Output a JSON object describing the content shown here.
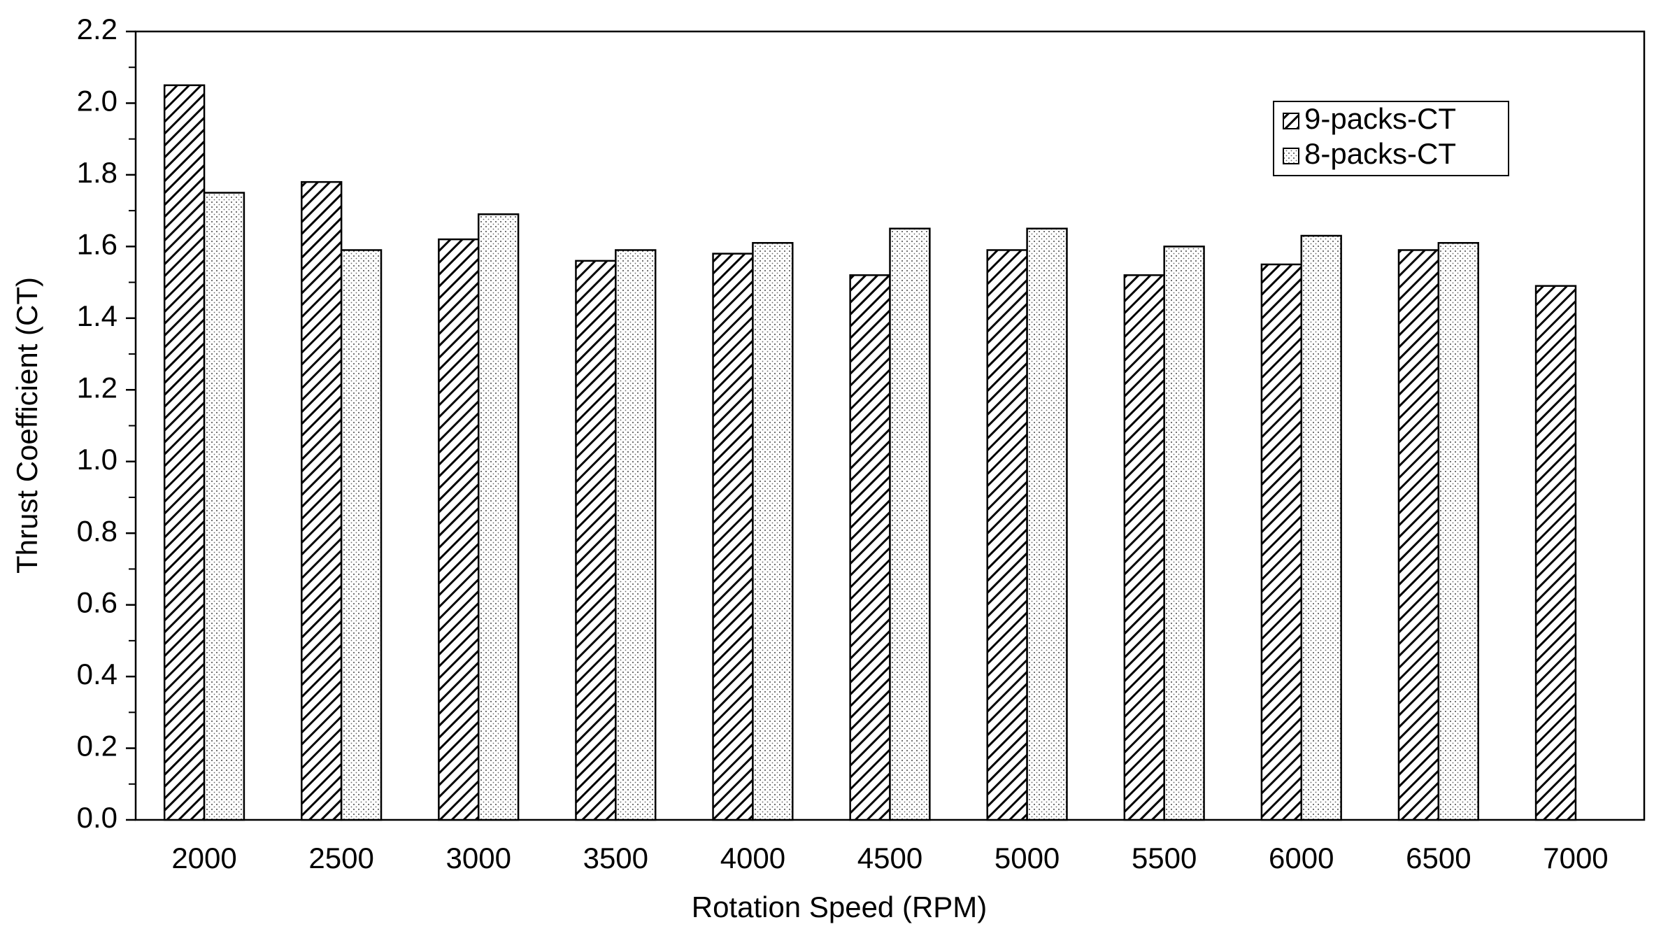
{
  "chart_data": {
    "type": "bar",
    "x_label": "Rotation Speed (RPM)",
    "y_label": "Thrust Coefficient (CT)",
    "categories": [
      "2000",
      "2500",
      "3000",
      "3500",
      "4000",
      "4500",
      "5000",
      "5500",
      "6000",
      "6500",
      "7000"
    ],
    "series": [
      {
        "name": "9-packs-CT",
        "color": "#000000",
        "pattern": "hatch",
        "values": [
          2.05,
          1.78,
          1.62,
          1.56,
          1.58,
          1.52,
          1.59,
          1.52,
          1.55,
          1.59,
          1.49
        ]
      },
      {
        "name": "8-packs-CT",
        "color": "#000000",
        "pattern": "dots",
        "values": [
          1.75,
          1.59,
          1.69,
          1.59,
          1.61,
          1.65,
          1.65,
          1.6,
          1.63,
          1.61,
          null
        ]
      }
    ],
    "ylim": [
      0,
      2.2
    ],
    "yticks": [
      {
        "value": 0,
        "label": "0.0"
      },
      0.2,
      0.4,
      0.6,
      0.8,
      {
        "value": 1,
        "label": "1.0"
      },
      1.2,
      1.4,
      1.6,
      1.8,
      {
        "value": 2,
        "label": "2.0"
      },
      2.2
    ],
    "y_minor_step": 0.1,
    "grid": false,
    "legend": "upper right"
  }
}
